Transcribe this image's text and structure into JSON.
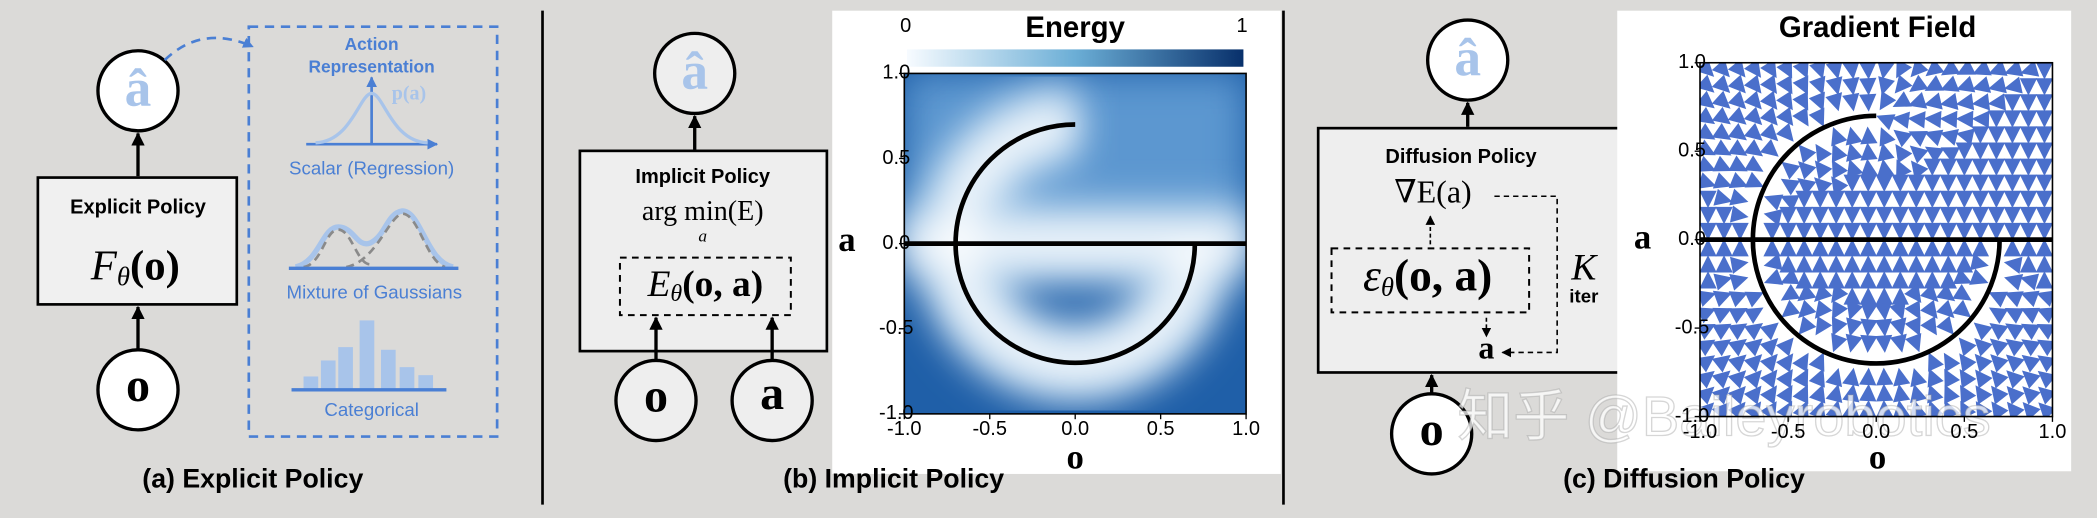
{
  "explicit": {
    "caption": "(a) Explicit Policy",
    "output": "â",
    "input": "o",
    "policy": {
      "title": "Explicit Policy",
      "f": "F",
      "sub": "θ",
      "args": "(o)"
    },
    "action_representation": {
      "title_1": "Action",
      "title_2": "Representation",
      "density": "p(a)",
      "options": [
        "Scalar (Regression)",
        "Mixture of Gaussians",
        "Categorical"
      ]
    }
  },
  "implicit": {
    "caption": "(b) Implicit Policy",
    "output": "â",
    "inputs": [
      "o",
      "a"
    ],
    "policy": {
      "title": "Implicit Policy",
      "objective": "arg min(E)",
      "objective_sub": "a",
      "e": "E",
      "sub": "θ",
      "args": "(o, a)"
    },
    "plot": {
      "title": "Energy",
      "colorbar": [
        "0",
        "1"
      ],
      "x_label": "o",
      "y_label": "a",
      "xticks": [
        "-1.0",
        "-0.5",
        "0.0",
        "0.5",
        "1.0"
      ],
      "yticks": [
        "1.0",
        "0.5",
        "0.0",
        "-0.5",
        "-1.0"
      ]
    }
  },
  "diffusion": {
    "caption": "(c) Diffusion Policy",
    "output": "â",
    "input": "o",
    "noisy_action": "a",
    "policy": {
      "title": "Diffusion Policy",
      "gradient": "∇E(a)",
      "eps": "ε",
      "sub": "θ",
      "args": "(o, a)",
      "k": "K",
      "iter": "iter"
    },
    "plot": {
      "title": "Gradient Field",
      "x_label": "o",
      "y_label": "a",
      "xticks": [
        "-1.0",
        "-0.5",
        "0.0",
        "0.5",
        "1.0"
      ],
      "yticks": [
        "1.0",
        "0.5",
        "0.0",
        "-0.5",
        "-1.0"
      ]
    }
  },
  "watermark": "知乎 @Baileyrobotics"
}
